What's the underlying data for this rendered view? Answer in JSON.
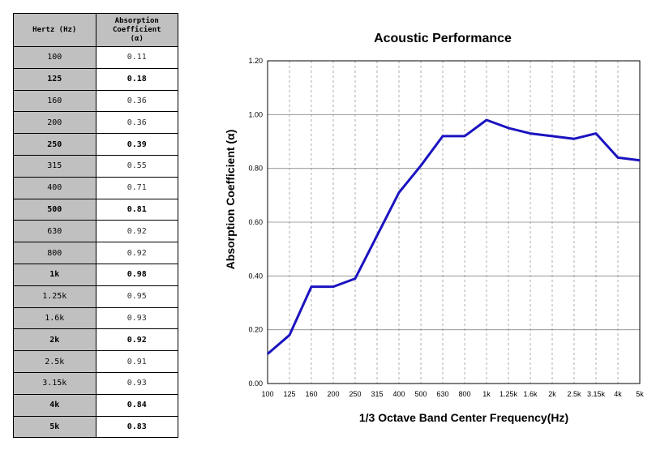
{
  "table": {
    "header_hz": "Hertz (Hz)",
    "header_coef_lines": [
      "Absorption",
      "Coefficient",
      "(α)"
    ],
    "rows": [
      {
        "hz": "100",
        "coef": "0.11",
        "bold": false
      },
      {
        "hz": "125",
        "coef": "0.18",
        "bold": true
      },
      {
        "hz": "160",
        "coef": "0.36",
        "bold": false
      },
      {
        "hz": "200",
        "coef": "0.36",
        "bold": false
      },
      {
        "hz": "250",
        "coef": "0.39",
        "bold": true
      },
      {
        "hz": "315",
        "coef": "0.55",
        "bold": false
      },
      {
        "hz": "400",
        "coef": "0.71",
        "bold": false
      },
      {
        "hz": "500",
        "coef": "0.81",
        "bold": true
      },
      {
        "hz": "630",
        "coef": "0.92",
        "bold": false
      },
      {
        "hz": "800",
        "coef": "0.92",
        "bold": false
      },
      {
        "hz": "1k",
        "coef": "0.98",
        "bold": true
      },
      {
        "hz": "1.25k",
        "coef": "0.95",
        "bold": false
      },
      {
        "hz": "1.6k",
        "coef": "0.93",
        "bold": false
      },
      {
        "hz": "2k",
        "coef": "0.92",
        "bold": true
      },
      {
        "hz": "2.5k",
        "coef": "0.91",
        "bold": false
      },
      {
        "hz": "3.15k",
        "coef": "0.93",
        "bold": false
      },
      {
        "hz": "4k",
        "coef": "0.84",
        "bold": true
      },
      {
        "hz": "5k",
        "coef": "0.83",
        "bold": true
      }
    ]
  },
  "chart_data": {
    "type": "line",
    "title": "Acoustic Performance",
    "xlabel": "1/3 Octave Band Center Frequency(Hz)",
    "ylabel": "Absorption Coefficient (α)",
    "categories": [
      "100",
      "125",
      "160",
      "200",
      "250",
      "315",
      "400",
      "500",
      "630",
      "800",
      "1k",
      "1.25k",
      "1.6k",
      "2k",
      "2.5k",
      "3.15k",
      "4k",
      "5k"
    ],
    "values": [
      0.11,
      0.18,
      0.36,
      0.36,
      0.39,
      0.55,
      0.71,
      0.81,
      0.92,
      0.92,
      0.98,
      0.95,
      0.93,
      0.92,
      0.91,
      0.93,
      0.84,
      0.83
    ],
    "ylim": [
      0,
      1.2
    ],
    "yticks": [
      "0.00",
      "0.20",
      "0.40",
      "0.60",
      "0.80",
      "1.00",
      "1.20"
    ],
    "line_color": "#1a13c0",
    "grid": true
  }
}
